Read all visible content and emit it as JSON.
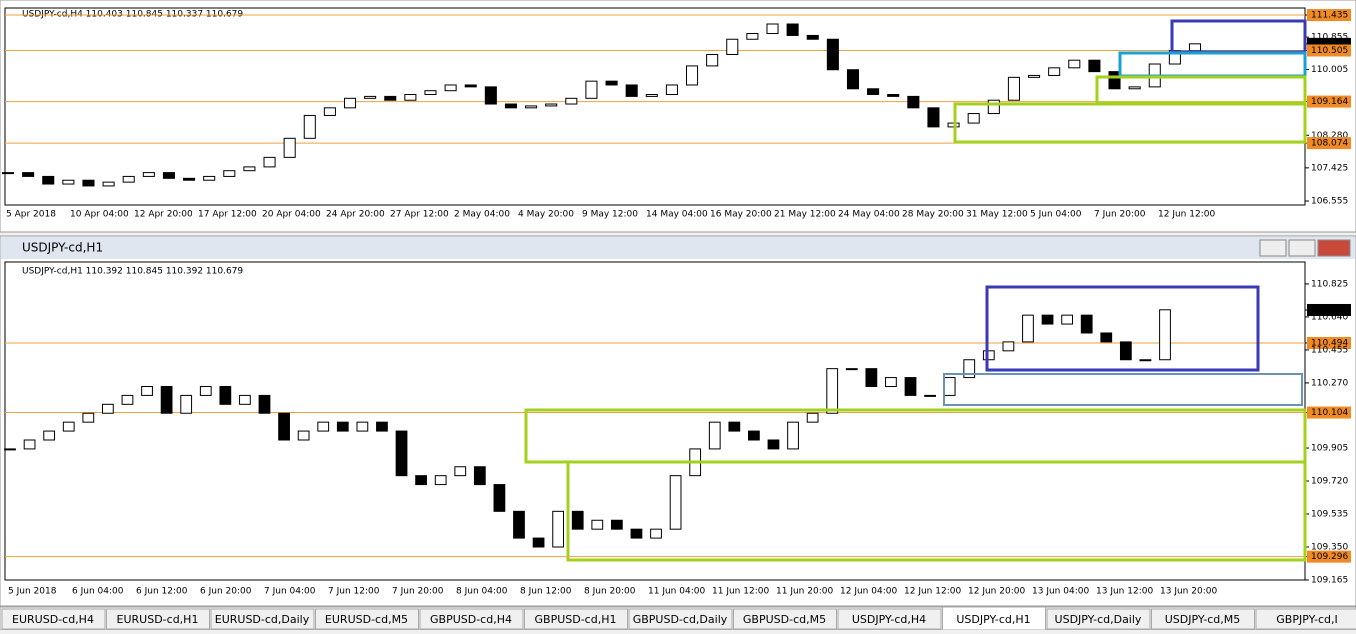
{
  "top_chart": {
    "type": "candlestick",
    "header": "USDJPY-cd,H4  110.403 110.845 110.337 110.679",
    "ylim": [
      106.45,
      111.62
    ],
    "yticks": [
      {
        "value": 111.435,
        "label": "111.435",
        "level": true
      },
      {
        "value": 110.855,
        "label": "110.855"
      },
      {
        "value": 110.679,
        "label": "110.679",
        "current": true
      },
      {
        "value": 110.505,
        "label": "110.505",
        "level": true
      },
      {
        "value": 110.005,
        "label": "110.005"
      },
      {
        "value": 109.164,
        "label": "109.164",
        "level": true
      },
      {
        "value": 108.28,
        "label": "108.280"
      },
      {
        "value": 108.074,
        "label": "108.074",
        "level": true
      },
      {
        "value": 107.425,
        "label": "107.425"
      },
      {
        "value": 106.555,
        "label": "106.555"
      }
    ],
    "xlabels": [
      "5 Apr 2018",
      "10 Apr 04:00",
      "12 Apr 20:00",
      "17 Apr 12:00",
      "20 Apr 04:00",
      "24 Apr 20:00",
      "27 Apr 12:00",
      "2 May 04:00",
      "4 May 20:00",
      "9 May 12:00",
      "14 May 04:00",
      "16 May 20:00",
      "21 May 12:00",
      "24 May 04:00",
      "28 May 20:00",
      "31 May 12:00",
      "5 Jun 04:00",
      "7 Jun 20:00",
      "12 Jun 12:00"
    ],
    "closes": [
      107.3,
      107.2,
      107.0,
      107.1,
      106.95,
      107.05,
      107.2,
      107.3,
      107.15,
      107.1,
      107.2,
      107.35,
      107.45,
      107.7,
      108.2,
      108.8,
      109.0,
      109.25,
      109.3,
      109.2,
      109.35,
      109.45,
      109.6,
      109.55,
      109.1,
      109.0,
      109.05,
      109.1,
      109.25,
      109.7,
      109.6,
      109.3,
      109.35,
      109.6,
      110.1,
      110.4,
      110.8,
      110.95,
      111.2,
      110.9,
      110.8,
      110.0,
      109.5,
      109.35,
      109.3,
      109.0,
      108.5,
      108.6,
      108.85,
      109.2,
      109.8,
      109.85,
      110.05,
      110.25,
      109.95,
      109.5,
      109.55,
      110.15,
      110.5,
      110.68
    ]
  },
  "bottom_chart": {
    "type": "candlestick",
    "window_title": "USDJPY-cd,H1",
    "header": "USDJPY-cd,H1  110.392 110.845 110.392 110.679",
    "ylim": [
      109.165,
      110.948
    ],
    "yticks": [
      {
        "value": 110.825,
        "label": "110.825"
      },
      {
        "value": 110.679,
        "label": "110.679",
        "current": true
      },
      {
        "value": 110.64,
        "label": "110.640"
      },
      {
        "value": 110.494,
        "label": "110.494",
        "level": true
      },
      {
        "value": 110.455,
        "label": "110.455"
      },
      {
        "value": 110.27,
        "label": "110.270"
      },
      {
        "value": 110.104,
        "label": "110.104",
        "level": true
      },
      {
        "value": 109.905,
        "label": "109.905"
      },
      {
        "value": 109.72,
        "label": "109.720"
      },
      {
        "value": 109.535,
        "label": "109.535"
      },
      {
        "value": 109.35,
        "label": "109.350"
      },
      {
        "value": 109.296,
        "label": "109.296",
        "level": true
      },
      {
        "value": 109.165,
        "label": "109.165"
      }
    ],
    "xlabels": [
      "5 Jun 2018",
      "6 Jun 04:00",
      "6 Jun 12:00",
      "6 Jun 20:00",
      "7 Jun 04:00",
      "7 Jun 12:00",
      "7 Jun 20:00",
      "8 Jun 04:00",
      "8 Jun 12:00",
      "8 Jun 20:00",
      "11 Jun 04:00",
      "11 Jun 12:00",
      "11 Jun 20:00",
      "12 Jun 04:00",
      "12 Jun 12:00",
      "12 Jun 20:00",
      "13 Jun 04:00",
      "13 Jun 12:00",
      "13 Jun 20:00"
    ],
    "closes": [
      109.9,
      109.95,
      110.0,
      110.05,
      110.1,
      110.15,
      110.2,
      110.25,
      110.1,
      110.2,
      110.25,
      110.15,
      110.2,
      110.1,
      109.95,
      110.0,
      110.05,
      110.0,
      110.05,
      110.0,
      109.75,
      109.7,
      109.75,
      109.8,
      109.7,
      109.55,
      109.4,
      109.35,
      109.55,
      109.45,
      109.5,
      109.45,
      109.4,
      109.45,
      109.75,
      109.9,
      110.05,
      110.0,
      109.95,
      109.9,
      110.05,
      110.1,
      110.35,
      110.35,
      110.25,
      110.3,
      110.2,
      110.2,
      110.3,
      110.4,
      110.45,
      110.5,
      110.65,
      110.6,
      110.65,
      110.55,
      110.5,
      110.4,
      110.4,
      110.68
    ]
  },
  "tabs": [
    "EURUSD-cd,H4",
    "EURUSD-cd,H1",
    "EURUSD-cd,Daily",
    "EURUSD-cd,M5",
    "GBPUSD-cd,H4",
    "GBPUSD-cd,H1",
    "GBPUSD-cd,Daily",
    "GBPUSD-cd,M5",
    "USDJPY-cd,H4",
    "USDJPY-cd,H1",
    "USDJPY-cd,Daily",
    "USDJPY-cd,M5",
    "GBPJPY-cd,I"
  ],
  "active_tab": 9
}
